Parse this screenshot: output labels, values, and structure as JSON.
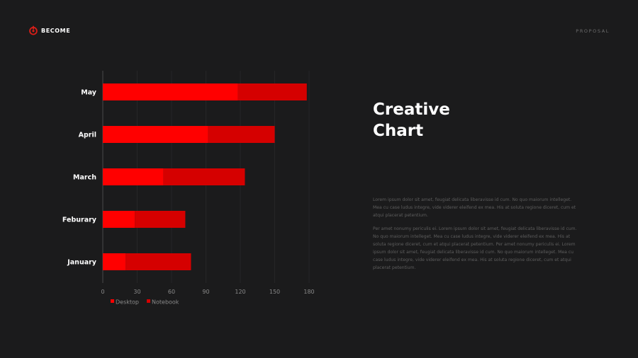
{
  "brand": {
    "name": "BECOME",
    "accent": "#d91e18"
  },
  "header": {
    "right_label": "PROPOSAL"
  },
  "content": {
    "title_line1": "Creative",
    "title_line2": "Chart",
    "paragraph1": "Lorem ipsum dolor sit amet, feugiat delicata liberavisse id cum. No quo maiorum intelleget. Mea cu case ludus integre, vide viderer eleifend ex mea. His at soluta regione diceret, cum et atqui placerat petentium.",
    "paragraph2": "Per amet nonumy periculis ei. Lorem ipsum dolor sit amet, feugiat delicata liberavisse id cum. No quo maiorum intelleget. Mea cu case ludus integre, vide viderer eleifend ex mea. His at soluta regione diceret, cum et atqui placerat petentium. Per amet nonumy periculis ei. Lorem ipsum dolor sit amet, feugiat delicata liberavisse id cum. No quo maiorum intelleget. Mea cu case ludus integre, vide viderer eleifend ex mea. His at soluta regione diceret, cum et atqui placerat petentium."
  },
  "chart_data": {
    "type": "bar",
    "orientation": "horizontal",
    "stacked": true,
    "categories": [
      "May",
      "April",
      "March",
      "Feburary",
      "January"
    ],
    "series": [
      {
        "name": "Desktop",
        "values": [
          118,
          92,
          53,
          28,
          20
        ],
        "color": "#ff0000"
      },
      {
        "name": "Notebook",
        "values": [
          60,
          58,
          71,
          44,
          57
        ],
        "color": "#d50000"
      }
    ],
    "xlim": [
      0,
      180
    ],
    "xticks": [
      0,
      30,
      60,
      90,
      120,
      150,
      180
    ],
    "grid": true,
    "legend": "bottom-left"
  }
}
